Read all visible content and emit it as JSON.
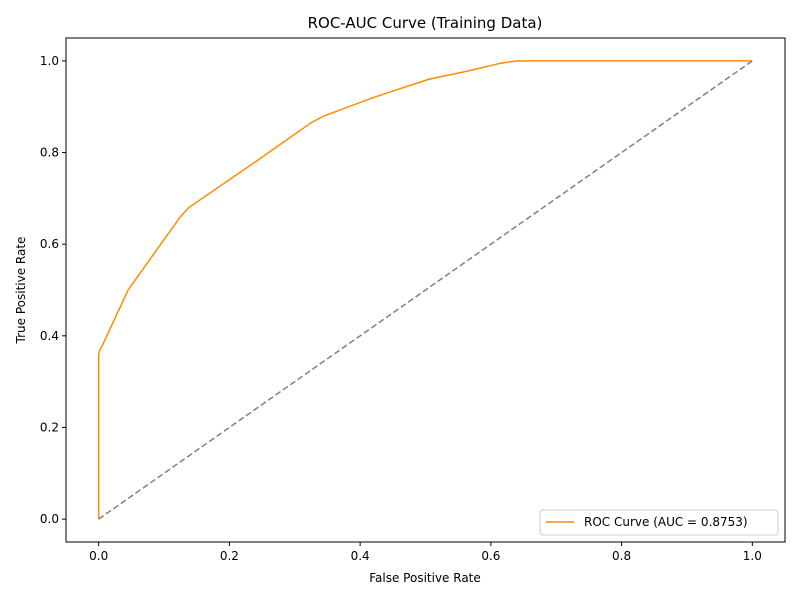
{
  "colors": {
    "roc_line": "#ff8c00",
    "baseline": "#808080",
    "axes": "#000000",
    "legend_border": "#cccccc"
  },
  "chart_data": {
    "type": "line",
    "title": "ROC-AUC Curve (Training Data)",
    "xlabel": "False Positive Rate",
    "ylabel": "True Positive Rate",
    "xlim": [
      -0.05,
      1.05
    ],
    "ylim": [
      -0.05,
      1.05
    ],
    "xticks": [
      0.0,
      0.2,
      0.4,
      0.6,
      0.8,
      1.0
    ],
    "xtick_labels": [
      "0.0",
      "0.2",
      "0.4",
      "0.6",
      "0.8",
      "1.0"
    ],
    "yticks": [
      0.0,
      0.2,
      0.4,
      0.6,
      0.8,
      1.0
    ],
    "ytick_labels": [
      "0.0",
      "0.2",
      "0.4",
      "0.6",
      "0.8",
      "1.0"
    ],
    "grid": false,
    "legend_position": "lower-right",
    "series": [
      {
        "name": "ROC Curve (AUC = 0.8753)",
        "color": "#ff8c00",
        "style": "solid",
        "x": [
          0.0,
          0.0,
          0.002,
          0.006,
          0.045,
          0.085,
          0.125,
          0.138,
          0.23,
          0.325,
          0.345,
          0.42,
          0.505,
          0.565,
          0.615,
          0.64,
          0.7,
          1.0
        ],
        "y": [
          0.0,
          0.36,
          0.37,
          0.38,
          0.5,
          0.58,
          0.66,
          0.68,
          0.77,
          0.865,
          0.88,
          0.92,
          0.96,
          0.978,
          0.995,
          1.0,
          1.0,
          1.0
        ]
      },
      {
        "name": "",
        "color": "#808080",
        "style": "dashed",
        "x": [
          0.0,
          1.0
        ],
        "y": [
          0.0,
          1.0
        ]
      }
    ]
  }
}
